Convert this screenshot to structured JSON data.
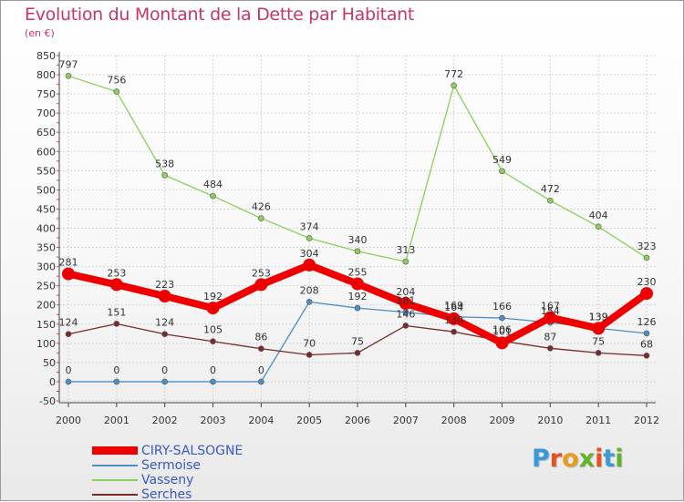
{
  "title": "Evolution du Montant de la Dette par Habitant",
  "unit_label": "(en €)",
  "logo": {
    "letters": [
      "P",
      "r",
      "o",
      "x",
      "i",
      "t",
      "i"
    ],
    "colors": [
      "#3a9ad9",
      "#e8501c",
      "#e89b1c",
      "#62b32a",
      "#e8501c",
      "#3a9ad9",
      "#62b32a"
    ]
  },
  "chart_data": {
    "type": "line",
    "x": [
      "2000",
      "2001",
      "2002",
      "2003",
      "2004",
      "2005",
      "2006",
      "2007",
      "2008",
      "2009",
      "2010",
      "2011",
      "2012"
    ],
    "yticks": [
      "-50",
      "0",
      "50",
      "100",
      "150",
      "200",
      "250",
      "300",
      "350",
      "400",
      "450",
      "500",
      "550",
      "600",
      "650",
      "700",
      "750",
      "800",
      "850"
    ],
    "ylim": [
      -50,
      850
    ],
    "grid": true,
    "legend_position": "bottom-left",
    "series": [
      {
        "name": "CIRY-SALSOGNE",
        "color": "#ee0000",
        "values": [
          281,
          253,
          223,
          192,
          253,
          304,
          255,
          204,
          164,
          101,
          167,
          139,
          230
        ],
        "labels": [
          "281",
          "253",
          "223",
          "192",
          "253",
          "304",
          "255",
          "204",
          "164",
          "101",
          "167",
          "139",
          "230"
        ]
      },
      {
        "name": "Sermoise",
        "color": "#4a8fc8",
        "values": [
          0,
          0,
          0,
          0,
          0,
          208,
          192,
          181,
          169,
          166,
          154,
          139,
          126
        ],
        "labels": [
          "0",
          "0",
          "0",
          "0",
          "0",
          "208",
          "192",
          "181",
          "169",
          "166",
          "154",
          "139",
          "126"
        ]
      },
      {
        "name": "Vasseny",
        "color": "#8ccf5a",
        "values": [
          797,
          756,
          538,
          484,
          426,
          374,
          340,
          313,
          772,
          549,
          472,
          404,
          323
        ],
        "labels": [
          "797",
          "756",
          "538",
          "484",
          "426",
          "374",
          "340",
          "313",
          "772",
          "549",
          "472",
          "404",
          "323"
        ]
      },
      {
        "name": "Serches",
        "color": "#7a2a2a",
        "values": [
          124,
          151,
          124,
          105,
          86,
          70,
          75,
          146,
          130,
          106,
          87,
          75,
          68
        ],
        "labels": [
          "124",
          "151",
          "124",
          "105",
          "86",
          "70",
          "75",
          "146",
          "130",
          "106",
          "87",
          "75",
          "68"
        ]
      }
    ]
  }
}
